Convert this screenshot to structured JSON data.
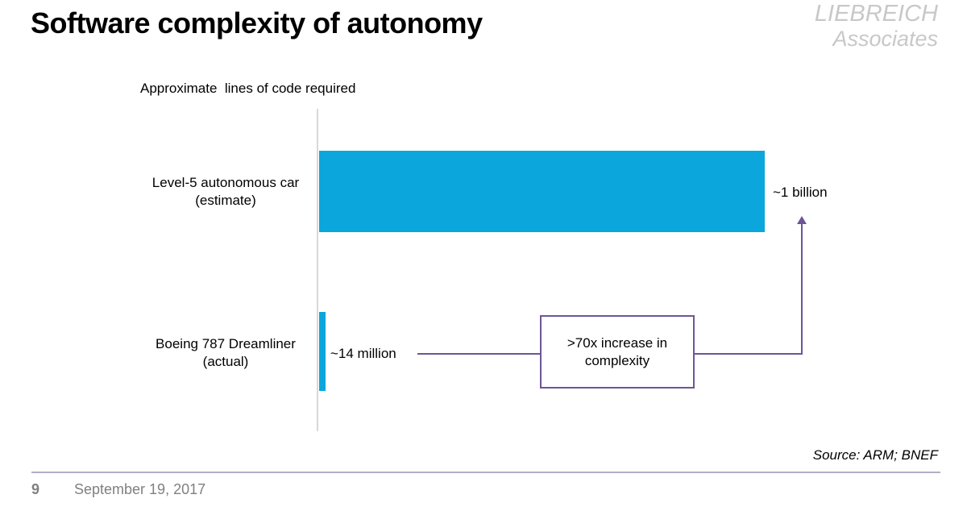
{
  "slide": {
    "title": "Software complexity of autonomy",
    "logo": {
      "line1": "LIEBREICH",
      "line2": "Associates"
    },
    "source": "Source: ARM; BNEF",
    "footer": {
      "page_number": "9",
      "date": "September 19, 2017"
    }
  },
  "chart_data": {
    "type": "bar",
    "orientation": "horizontal",
    "title": "Approximate  lines of code required",
    "categories": [
      {
        "line1": "Level-5 autonomous car",
        "line2": "(estimate)"
      },
      {
        "line1": "Boeing 787 Dreamliner",
        "line2": "(actual)"
      }
    ],
    "values": [
      1000000000,
      14000000
    ],
    "value_labels": [
      "~1 billion",
      "~14 million"
    ],
    "annotation": {
      "line1": ">70x increase in",
      "line2": "complexity"
    },
    "legend": "none",
    "grid": "off",
    "xlim": [
      0,
      1000000000
    ]
  },
  "colors": {
    "bar": "#0ba6db",
    "annotation_purple": "#6e5596",
    "axis_gray": "#d8d8d8",
    "divider": "#b0aec6",
    "footer_text": "#808080",
    "logo_gray": "#c8c8c8"
  }
}
